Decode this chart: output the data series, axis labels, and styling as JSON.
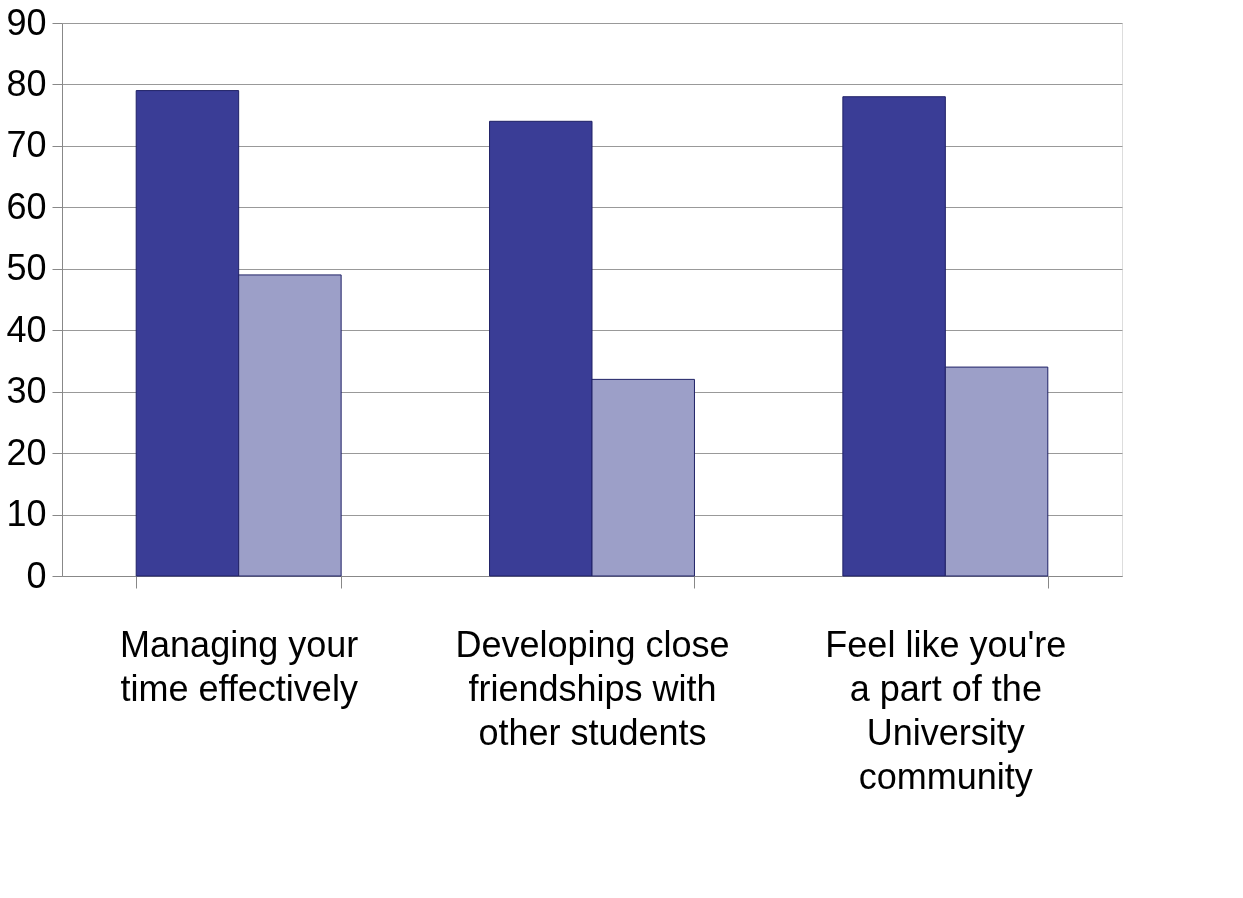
{
  "chart_data": {
    "type": "bar",
    "categories": [
      "Managing your time effectively",
      "Developing close friendships with other students",
      "Feel like you're a part of the University community"
    ],
    "series": [
      {
        "color": "#3a3d96",
        "values": [
          79,
          74,
          78
        ]
      },
      {
        "color": "#9c9fc8",
        "values": [
          49,
          32,
          34
        ]
      }
    ],
    "ylim": [
      0,
      90
    ],
    "yticks": [
      0,
      10,
      20,
      30,
      40,
      50,
      60,
      70,
      80,
      90
    ],
    "grid": "y",
    "legend": false
  }
}
